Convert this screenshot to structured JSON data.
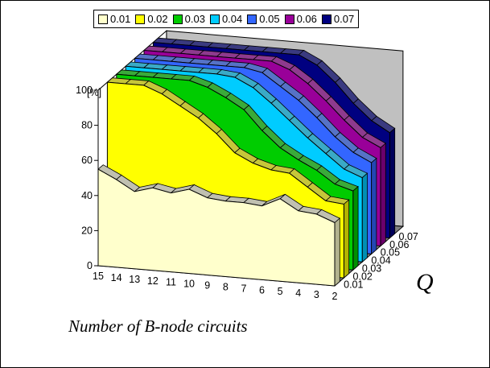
{
  "chart_data": {
    "type": "area",
    "title": "",
    "xlabel": "Number of B-node circuits",
    "ylabel": "[%]",
    "zlabel": "Q",
    "ylim": [
      0,
      100
    ],
    "y_ticks": [
      "0",
      "20",
      "40",
      "60",
      "80",
      "100"
    ],
    "x": [
      "15",
      "14",
      "13",
      "12",
      "11",
      "10",
      "9",
      "8",
      "7",
      "6",
      "5",
      "4",
      "3",
      "2"
    ],
    "series": [
      {
        "name": "0.01",
        "color": "#ffffcc",
        "values": [
          55,
          50,
          44,
          47,
          45,
          48,
          44,
          43,
          43,
          42,
          47,
          41,
          40,
          36
        ]
      },
      {
        "name": "0.02",
        "color": "#ffff00",
        "values": [
          100,
          100,
          100,
          96,
          90,
          84,
          76,
          66,
          61,
          58,
          57,
          50,
          43,
          42
        ]
      },
      {
        "name": "0.03",
        "color": "#00cc00",
        "values": [
          100,
          100,
          100,
          100,
          100,
          97,
          92,
          86,
          75,
          66,
          60,
          55,
          48,
          45
        ]
      },
      {
        "name": "0.04",
        "color": "#00ccff",
        "values": [
          100,
          100,
          100,
          100,
          100,
          100,
          99,
          94,
          86,
          77,
          68,
          60,
          52,
          48
        ]
      },
      {
        "name": "0.05",
        "color": "#3366ff",
        "values": [
          100,
          100,
          100,
          100,
          100,
          100,
          100,
          98,
          91,
          84,
          75,
          65,
          57,
          52
        ]
      },
      {
        "name": "0.06",
        "color": "#990099",
        "values": [
          100,
          100,
          100,
          100,
          100,
          100,
          100,
          100,
          96,
          89,
          80,
          70,
          61,
          56
        ]
      },
      {
        "name": "0.07",
        "color": "#000080",
        "values": [
          100,
          100,
          100,
          100,
          100,
          100,
          100,
          100,
          100,
          95,
          86,
          75,
          66,
          60
        ]
      }
    ],
    "grid": false,
    "legend": "top"
  }
}
